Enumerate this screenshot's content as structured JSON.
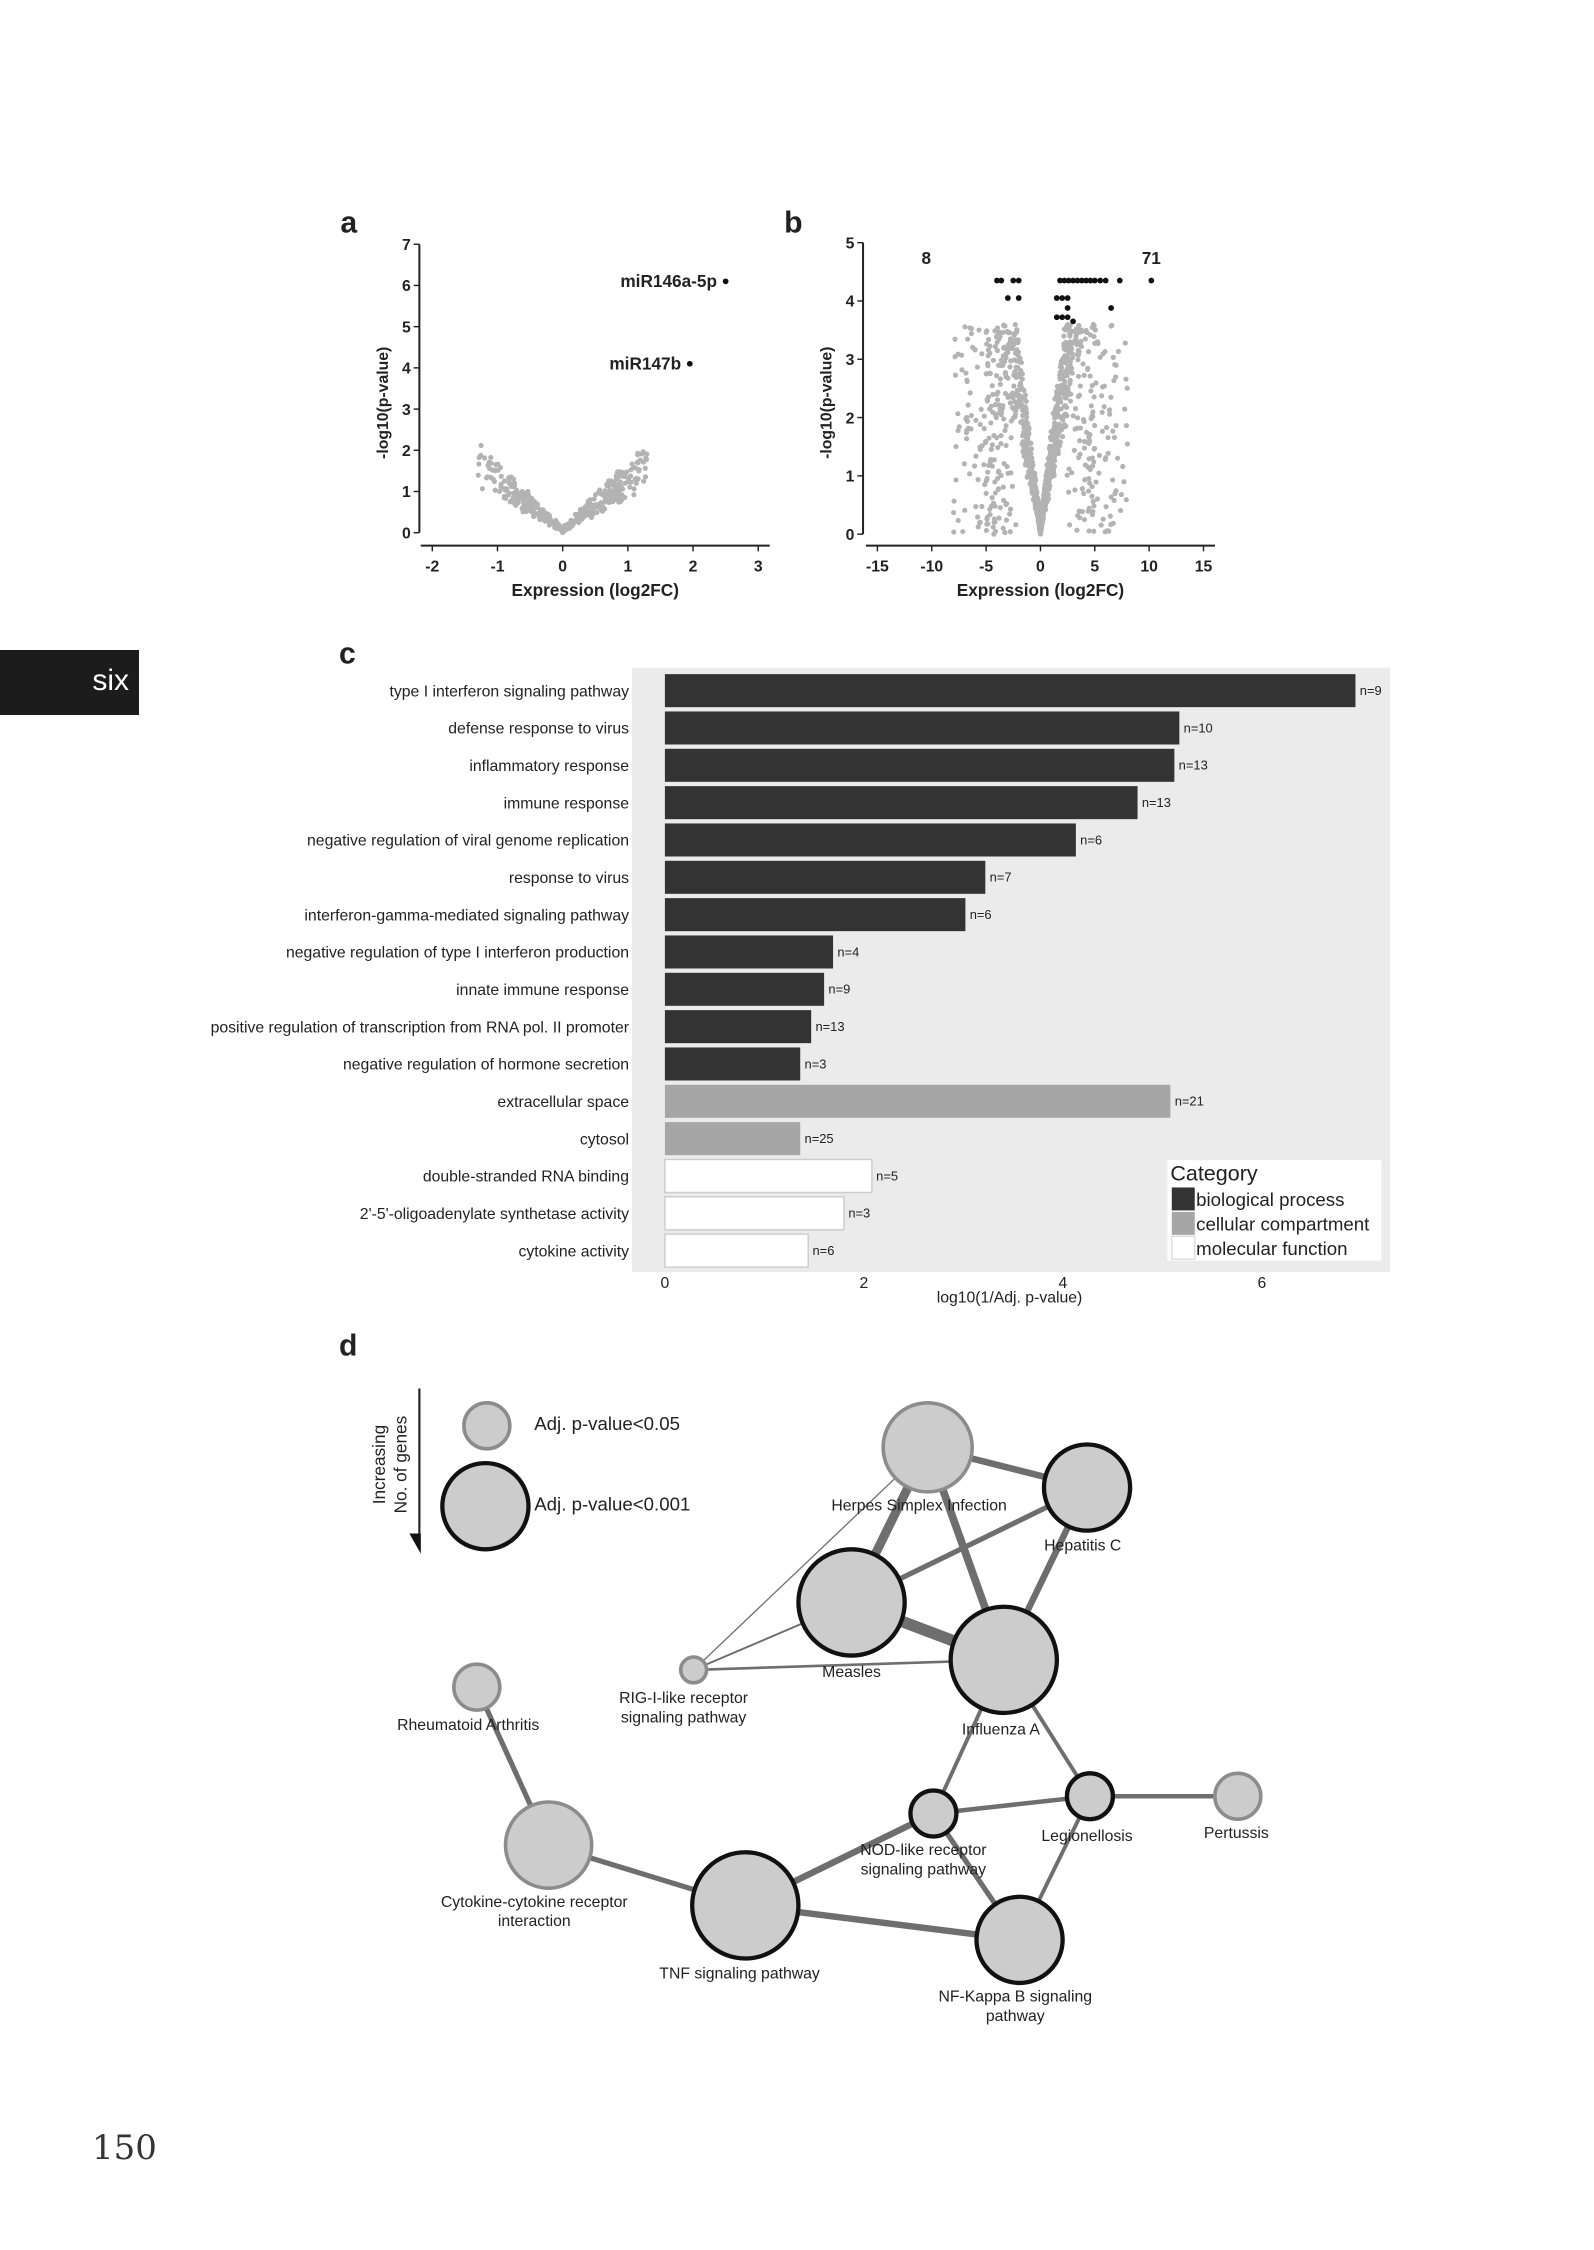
{
  "page": {
    "chapter_tab": "six",
    "page_number": "150"
  },
  "colors": {
    "dark_bar": "#333333",
    "mid_bar": "#a6a6a6",
    "light_bar": "#ffffff",
    "panel_bg": "#ebebeb",
    "point_gray": "#b3b3b3",
    "point_sig": "#111111",
    "node_fill": "#cccccc"
  },
  "chart_data": [
    {
      "panel": "a",
      "type": "scatter",
      "xlabel": "Expression (log2FC)",
      "ylabel": "-log10(p-value)",
      "xlim": [
        -2,
        3
      ],
      "ylim": [
        0,
        7
      ],
      "xticks": [
        "-2",
        "-1",
        "0",
        "1",
        "2",
        "3"
      ],
      "yticks": [
        "0",
        "1",
        "2",
        "3",
        "4",
        "5",
        "6",
        "7"
      ],
      "labeled_points": [
        {
          "label": "miR146a-5p",
          "x": 2.5,
          "y": 6.1
        },
        {
          "label": "miR147b",
          "x": 1.95,
          "y": 4.1
        }
      ],
      "background_cloud": {
        "shape": "V",
        "x_range": [
          -1.0,
          1.5
        ],
        "max_y": 2.6
      }
    },
    {
      "panel": "b",
      "type": "scatter",
      "xlabel": "Expression (log2FC)",
      "ylabel": "-log10(p-value)",
      "xlim": [
        -15,
        15
      ],
      "ylim": [
        0,
        5
      ],
      "xticks": [
        "-15",
        "-10",
        "-5",
        "0",
        "5",
        "10",
        "15"
      ],
      "yticks": [
        "0",
        "1",
        "2",
        "3",
        "4",
        "5"
      ],
      "annotations": [
        {
          "text": "8",
          "meaning": "down-regulated significant",
          "x": -10.5
        },
        {
          "text": "71",
          "meaning": "up-regulated significant",
          "x": 10.2
        }
      ],
      "significant_points": [
        {
          "x": -4.0,
          "y": 4.35
        },
        {
          "x": -3.6,
          "y": 4.35
        },
        {
          "x": -2.5,
          "y": 4.35
        },
        {
          "x": -2.0,
          "y": 4.35
        },
        {
          "x": -3.0,
          "y": 4.05
        },
        {
          "x": -2.0,
          "y": 4.05
        },
        {
          "x": 1.8,
          "y": 4.35
        },
        {
          "x": 2.2,
          "y": 4.35
        },
        {
          "x": 2.6,
          "y": 4.35
        },
        {
          "x": 3.0,
          "y": 4.35
        },
        {
          "x": 3.4,
          "y": 4.35
        },
        {
          "x": 3.8,
          "y": 4.35
        },
        {
          "x": 4.2,
          "y": 4.35
        },
        {
          "x": 4.6,
          "y": 4.35
        },
        {
          "x": 5.0,
          "y": 4.35
        },
        {
          "x": 5.5,
          "y": 4.35
        },
        {
          "x": 6.0,
          "y": 4.35
        },
        {
          "x": 7.3,
          "y": 4.35
        },
        {
          "x": 10.2,
          "y": 4.35
        },
        {
          "x": 1.5,
          "y": 4.05
        },
        {
          "x": 2.0,
          "y": 4.05
        },
        {
          "x": 2.5,
          "y": 4.05
        },
        {
          "x": 2.5,
          "y": 3.88
        },
        {
          "x": 6.5,
          "y": 3.88
        },
        {
          "x": 1.5,
          "y": 3.72
        },
        {
          "x": 2.0,
          "y": 3.72
        },
        {
          "x": 2.5,
          "y": 3.72
        },
        {
          "x": 3.0,
          "y": 3.65
        }
      ],
      "background_cloud": {
        "shape": "V",
        "x_range": [
          -11,
          12.5
        ],
        "max_y": 3.6
      }
    },
    {
      "panel": "c",
      "type": "bar",
      "orientation": "horizontal",
      "xlabel": "log10(1/Adj. p-value)",
      "xlim": [
        0,
        7.3
      ],
      "xticks": [
        "0",
        "2",
        "4",
        "6"
      ],
      "legend": {
        "title": "Category",
        "position": "bottom-right",
        "entries": [
          "biological process",
          "cellular compartment",
          "molecular function"
        ]
      },
      "bars": [
        {
          "term": "type I interferon signaling pathway",
          "value": 6.94,
          "n": "n=9",
          "category": 0
        },
        {
          "term": "defense response to virus",
          "value": 5.17,
          "n": "n=10",
          "category": 0
        },
        {
          "term": "inflammatory response",
          "value": 5.12,
          "n": "n=13",
          "category": 0
        },
        {
          "term": "immune response",
          "value": 4.75,
          "n": "n=13",
          "category": 0
        },
        {
          "term": "negative regulation of viral genome replication",
          "value": 4.13,
          "n": "n=6",
          "category": 0
        },
        {
          "term": "response to virus",
          "value": 3.22,
          "n": "n=7",
          "category": 0
        },
        {
          "term": "interferon-gamma-mediated signaling pathway",
          "value": 3.02,
          "n": "n=6",
          "category": 0
        },
        {
          "term": "negative regulation of type I interferon production",
          "value": 1.69,
          "n": "n=4",
          "category": 0
        },
        {
          "term": "innate immune response",
          "value": 1.6,
          "n": "n=9",
          "category": 0
        },
        {
          "term": "positive regulation of transcription from RNA pol. II promoter",
          "value": 1.47,
          "n": "n=13",
          "category": 0
        },
        {
          "term": "negative regulation of hormone secretion",
          "value": 1.36,
          "n": "n=3",
          "category": 0
        },
        {
          "term": "extracellular space",
          "value": 5.08,
          "n": "n=21",
          "category": 1
        },
        {
          "term": "cytosol",
          "value": 1.36,
          "n": "n=25",
          "category": 1
        },
        {
          "term": "double-stranded RNA binding",
          "value": 2.08,
          "n": "n=5",
          "category": 2
        },
        {
          "term": "2'-5'-oligoadenylate synthetase activity",
          "value": 1.8,
          "n": "n=3",
          "category": 2
        },
        {
          "term": "cytokine activity",
          "value": 1.44,
          "n": "n=6",
          "category": 2
        }
      ]
    },
    {
      "panel": "d",
      "type": "network",
      "legend": {
        "size_label": "Increasing No. of genes",
        "entries": [
          "Adj. p-value<0.05",
          "Adj. p-value<0.001"
        ]
      },
      "nodes": [
        {
          "id": "hsi",
          "label": [
            "Herpes Simplex Infection"
          ],
          "size": 4,
          "sig": "0.05"
        },
        {
          "id": "hepc",
          "label": [
            "Hepatitis C"
          ],
          "size": 4,
          "sig": "0.001"
        },
        {
          "id": "measles",
          "label": [
            "Measles"
          ],
          "size": 5,
          "sig": "0.001"
        },
        {
          "id": "flu",
          "label": [
            "Influenza A"
          ],
          "size": 5,
          "sig": "0.001"
        },
        {
          "id": "rig",
          "label": [
            "RIG-I-like receptor",
            "signaling pathway"
          ],
          "size": 1,
          "sig": "0.05"
        },
        {
          "id": "ra",
          "label": [
            "Rheumatoid Arthritis"
          ],
          "size": 2,
          "sig": "0.05"
        },
        {
          "id": "cyto",
          "label": [
            "Cytokine-cytokine receptor",
            "interaction"
          ],
          "size": 4,
          "sig": "0.05"
        },
        {
          "id": "tnf",
          "label": [
            "TNF signaling pathway"
          ],
          "size": 5,
          "sig": "0.001"
        },
        {
          "id": "nod",
          "label": [
            "NOD-like receptor",
            "signaling pathway"
          ],
          "size": 2,
          "sig": "0.001"
        },
        {
          "id": "legio",
          "label": [
            "Legionellosis"
          ],
          "size": 2,
          "sig": "0.001"
        },
        {
          "id": "pert",
          "label": [
            "Pertussis"
          ],
          "size": 2,
          "sig": "0.05"
        },
        {
          "id": "nfkb",
          "label": [
            "NF-Kappa B signaling",
            "pathway"
          ],
          "size": 4,
          "sig": "0.001"
        }
      ],
      "edges": [
        [
          "hsi",
          "hepc",
          5
        ],
        [
          "hsi",
          "measles",
          7
        ],
        [
          "hsi",
          "flu",
          6
        ],
        [
          "hsi",
          "rig",
          1
        ],
        [
          "hepc",
          "measles",
          4
        ],
        [
          "hepc",
          "flu",
          5
        ],
        [
          "measles",
          "flu",
          9
        ],
        [
          "measles",
          "rig",
          1.5
        ],
        [
          "rig",
          "flu",
          2
        ],
        [
          "flu",
          "nod",
          3
        ],
        [
          "flu",
          "legio",
          3
        ],
        [
          "nod",
          "legio",
          3.5
        ],
        [
          "legio",
          "pert",
          3.5
        ],
        [
          "legio",
          "nfkb",
          3
        ],
        [
          "nod",
          "nfkb",
          4
        ],
        [
          "nod",
          "tnf",
          5
        ],
        [
          "tnf",
          "nfkb",
          5
        ],
        [
          "tnf",
          "cyto",
          4
        ],
        [
          "cyto",
          "ra",
          4
        ]
      ]
    }
  ]
}
